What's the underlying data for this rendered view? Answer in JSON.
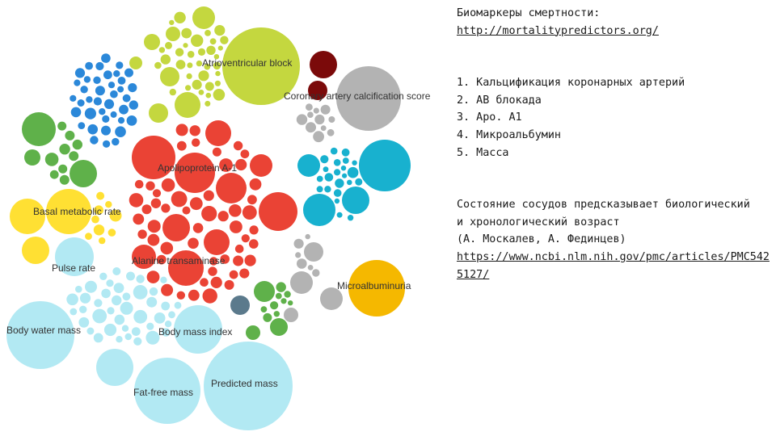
{
  "colors": {
    "red": "#ea4335",
    "blue": "#2b88d9",
    "yellow_green": "#c4d73f",
    "dark_red": "#7b0a0a",
    "gray": "#b3b3b3",
    "teal": "#18b1cf",
    "green": "#5fb14a",
    "yellow": "#ffe033",
    "light_blue": "#b2e9f3",
    "orange": "#f5b800",
    "slate": "#5b7a8c"
  },
  "chart": {
    "labels": {
      "atrioventricular": "Atrioventricular block",
      "coronary": "Coronary artery calcification score",
      "apolipoprotein": "Apolipoprotein A-1",
      "basal": "Basal metabolic rate",
      "pulse": "Pulse rate",
      "alanine": "Alanine transaminase",
      "microalbuminuria": "Microalbuminuria",
      "body_water": "Body water mass",
      "body_mass_index": "Body mass index",
      "fat_free": "Fat-free mass",
      "predicted": "Predicted mass"
    }
  },
  "notes": {
    "title": "Биомаркеры смертности:",
    "source_link": "http://mortalitypredictors.org/",
    "list": [
      "1. Кальцификация коронарных артерий",
      "2. АВ блокада",
      "3. Аро. А1",
      "4. Микроальбумин",
      "5. Масса"
    ],
    "paragraph_lines": [
      "Состояние сосудов предсказывает биологический",
      "и хронологический возраст",
      "(А. Москалев, А. Фединцев)"
    ],
    "paper_link": "https://www.ncbi.nlm.nih.gov/pmc/articles/PMC5425127/"
  }
}
